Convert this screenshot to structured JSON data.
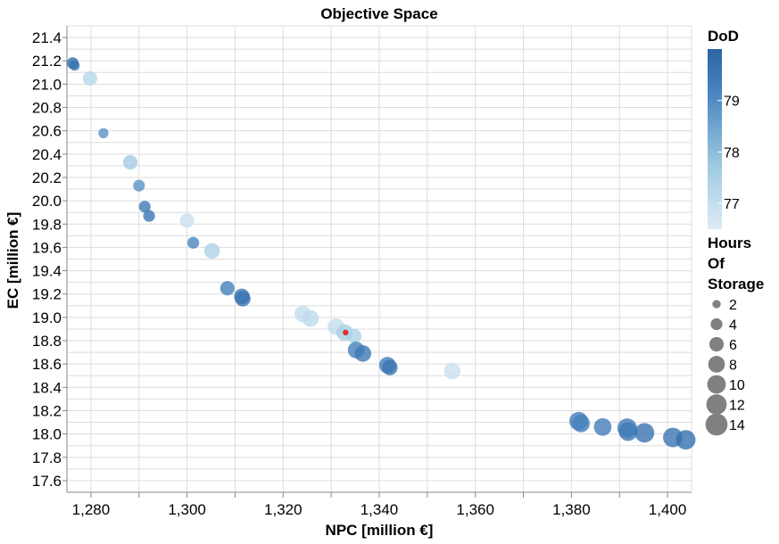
{
  "chart_data": {
    "type": "scatter",
    "title": "Objective Space",
    "xlabel": "NPC [million €]",
    "ylabel": "EC [million €]",
    "xlim": [
      1275,
      1405
    ],
    "ylim": [
      17.5,
      21.5
    ],
    "x_ticks": [
      1280,
      1300,
      1320,
      1340,
      1360,
      1380,
      1400
    ],
    "x_tick_labels": [
      "1,280",
      "1,300",
      "1,320",
      "1,340",
      "1,360",
      "1,380",
      "1,400"
    ],
    "y_ticks": [
      17.6,
      17.8,
      18.0,
      18.2,
      18.4,
      18.6,
      18.8,
      19.0,
      19.2,
      19.4,
      19.6,
      19.8,
      20.0,
      20.2,
      20.4,
      20.6,
      20.8,
      21.0,
      21.2,
      21.4
    ],
    "y_tick_labels": [
      "17.6",
      "17.8",
      "18.0",
      "18.2",
      "18.4",
      "18.6",
      "18.8",
      "19.0",
      "19.2",
      "19.4",
      "19.6",
      "19.8",
      "20.0",
      "20.2",
      "20.4",
      "20.6",
      "20.8",
      "21.0",
      "21.2",
      "21.4"
    ],
    "grid": true,
    "color_legend": {
      "title": "DoD",
      "range": [
        76.5,
        80.0
      ],
      "ticks": [
        77,
        78,
        79
      ],
      "tick_labels": [
        "77",
        "78",
        "79"
      ],
      "colors": [
        "#deebf7",
        "#9ecae1",
        "#4a86c0",
        "#2b65a4"
      ]
    },
    "size_legend": {
      "title": [
        "Hours",
        "Of",
        "Storage"
      ],
      "values": [
        2,
        4,
        6,
        8,
        10,
        12,
        14
      ],
      "labels": [
        "2",
        "4",
        "6",
        "8",
        "10",
        "12",
        "14"
      ],
      "color": "#808080"
    },
    "highlight_color": "#e03030",
    "points": [
      {
        "npc": 1276.2,
        "ec": 21.18,
        "dod": 79.7,
        "hours": 4
      },
      {
        "npc": 1276.6,
        "ec": 21.16,
        "dod": 79.5,
        "hours": 3
      },
      {
        "npc": 1279.8,
        "ec": 21.05,
        "dod": 77.2,
        "hours": 6
      },
      {
        "npc": 1282.6,
        "ec": 20.58,
        "dod": 78.6,
        "hours": 3
      },
      {
        "npc": 1288.2,
        "ec": 20.33,
        "dod": 77.6,
        "hours": 6
      },
      {
        "npc": 1290.0,
        "ec": 20.13,
        "dod": 78.6,
        "hours": 4
      },
      {
        "npc": 1291.2,
        "ec": 19.95,
        "dod": 79.3,
        "hours": 4
      },
      {
        "npc": 1292.1,
        "ec": 19.87,
        "dod": 79.4,
        "hours": 4
      },
      {
        "npc": 1300.0,
        "ec": 19.83,
        "dod": 76.9,
        "hours": 6
      },
      {
        "npc": 1301.3,
        "ec": 19.64,
        "dod": 78.9,
        "hours": 4
      },
      {
        "npc": 1305.2,
        "ec": 19.57,
        "dod": 77.4,
        "hours": 7
      },
      {
        "npc": 1308.4,
        "ec": 19.25,
        "dod": 79.0,
        "hours": 6
      },
      {
        "npc": 1311.4,
        "ec": 19.18,
        "dod": 79.2,
        "hours": 7
      },
      {
        "npc": 1311.6,
        "ec": 19.16,
        "dod": 79.5,
        "hours": 7
      },
      {
        "npc": 1324.1,
        "ec": 19.03,
        "dod": 77.0,
        "hours": 8
      },
      {
        "npc": 1325.7,
        "ec": 18.99,
        "dod": 77.1,
        "hours": 8
      },
      {
        "npc": 1331.0,
        "ec": 18.92,
        "dod": 77.0,
        "hours": 8
      },
      {
        "npc": 1332.8,
        "ec": 18.87,
        "dod": 77.5,
        "hours": 8
      },
      {
        "npc": 1334.8,
        "ec": 18.84,
        "dod": 77.4,
        "hours": 6
      },
      {
        "npc": 1335.2,
        "ec": 18.72,
        "dod": 79.0,
        "hours": 8
      },
      {
        "npc": 1336.6,
        "ec": 18.69,
        "dod": 79.3,
        "hours": 8
      },
      {
        "npc": 1341.7,
        "ec": 18.59,
        "dod": 79.1,
        "hours": 8
      },
      {
        "npc": 1342.2,
        "ec": 18.57,
        "dod": 79.4,
        "hours": 7
      },
      {
        "npc": 1355.2,
        "ec": 18.54,
        "dod": 76.9,
        "hours": 8
      },
      {
        "npc": 1381.5,
        "ec": 18.11,
        "dod": 79.2,
        "hours": 10
      },
      {
        "npc": 1382.0,
        "ec": 18.09,
        "dod": 79.0,
        "hours": 9
      },
      {
        "npc": 1386.5,
        "ec": 18.06,
        "dod": 79.1,
        "hours": 9
      },
      {
        "npc": 1391.6,
        "ec": 18.05,
        "dod": 79.2,
        "hours": 11
      },
      {
        "npc": 1391.8,
        "ec": 18.02,
        "dod": 79.3,
        "hours": 10
      },
      {
        "npc": 1395.2,
        "ec": 18.01,
        "dod": 79.5,
        "hours": 11
      },
      {
        "npc": 1401.1,
        "ec": 17.97,
        "dod": 79.4,
        "hours": 11
      },
      {
        "npc": 1403.8,
        "ec": 17.95,
        "dod": 79.6,
        "hours": 11
      }
    ],
    "highlight_point": {
      "npc": 1333.0,
      "ec": 18.87
    }
  }
}
